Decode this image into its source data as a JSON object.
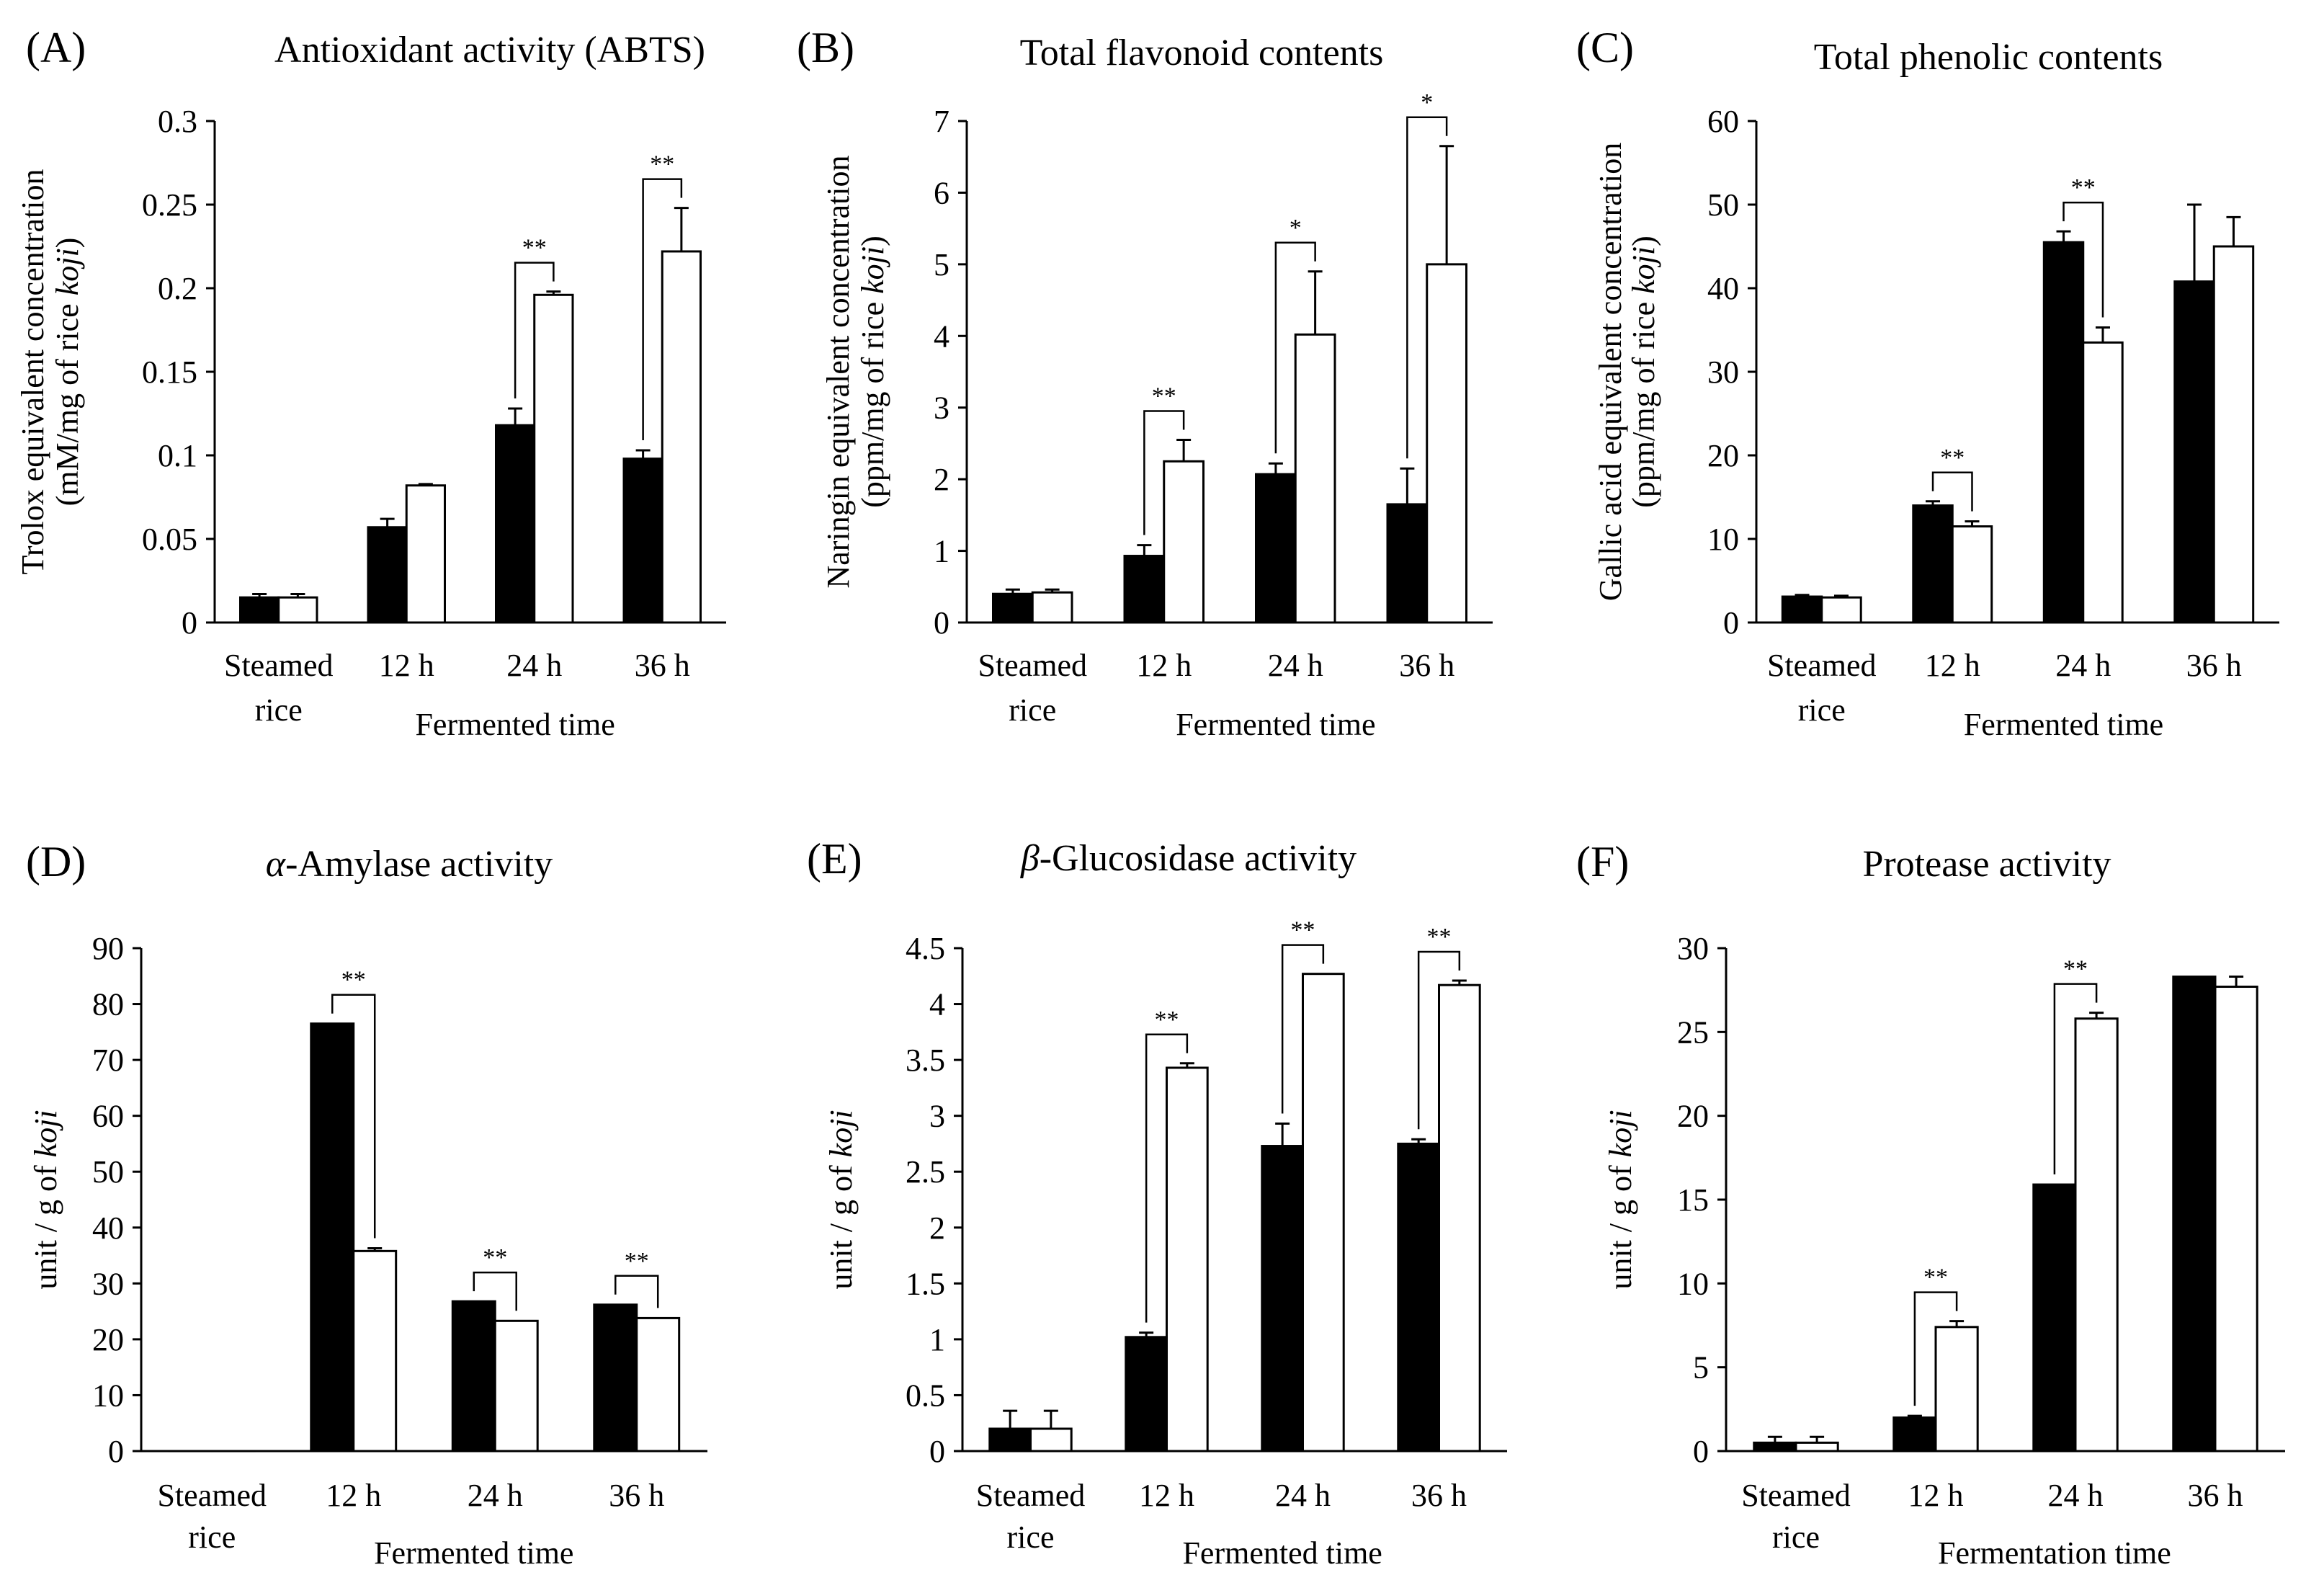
{
  "figure": {
    "legend_note": "",
    "colors": {
      "series_a": "#000000",
      "series_b": "#ffffff",
      "axis": "#000000"
    }
  },
  "chart_data": [
    {
      "panel": "(A)",
      "type": "bar",
      "title": "Antioxidant activity (ABTS)",
      "ylabel_line1": "Trolox equivalent concentration",
      "ylabel_line2_prefix": "(mM/mg of rice ",
      "ylabel_line2_italic": "koji",
      "ylabel_line2_suffix": ")",
      "xlabel": "Fermented time",
      "yticks": [
        "0",
        "0.05",
        "0.1",
        "0.15",
        "0.2",
        "0.25",
        "0.3"
      ],
      "ylim": [
        0,
        0.3
      ],
      "categories": [
        [
          "Steamed",
          "rice"
        ],
        [
          "12 h"
        ],
        [
          "24 h"
        ],
        [
          "36 h"
        ]
      ],
      "series": [
        {
          "name": "filled",
          "values": [
            0.015,
            0.057,
            0.118,
            0.098
          ],
          "errors": [
            0.002,
            0.005,
            0.01,
            0.005
          ]
        },
        {
          "name": "open",
          "values": [
            0.015,
            0.082,
            0.196,
            0.222
          ],
          "errors": [
            0.002,
            0.0008,
            0.002,
            0.026
          ]
        }
      ],
      "significance": [
        null,
        null,
        "**",
        "**"
      ]
    },
    {
      "panel": "(B)",
      "type": "bar",
      "title": "Total flavonoid contents",
      "ylabel_line1": "Naringin equivalent concentration",
      "ylabel_line2_prefix": "(ppm/mg of rice ",
      "ylabel_line2_italic": "koji",
      "ylabel_line2_suffix": ")",
      "xlabel": "Fermented time",
      "yticks": [
        "0",
        "1",
        "2",
        "3",
        "4",
        "5",
        "6",
        "7"
      ],
      "ylim": [
        0,
        7
      ],
      "categories": [
        [
          "Steamed",
          "rice"
        ],
        [
          "12 h"
        ],
        [
          "24 h"
        ],
        [
          "36 h"
        ]
      ],
      "series": [
        {
          "name": "filled",
          "values": [
            0.4,
            0.93,
            2.07,
            1.65
          ],
          "errors": [
            0.06,
            0.15,
            0.15,
            0.5
          ]
        },
        {
          "name": "open",
          "values": [
            0.42,
            2.25,
            4.02,
            5.0
          ],
          "errors": [
            0.04,
            0.3,
            0.88,
            1.65
          ]
        }
      ],
      "significance": [
        null,
        "**",
        "*",
        "*"
      ]
    },
    {
      "panel": "(C)",
      "type": "bar",
      "title": "Total phenolic contents",
      "ylabel_line1": "Gallic acid equivalent concentration",
      "ylabel_line2_prefix": "(ppm/mg of rice ",
      "ylabel_line2_italic": "koji",
      "ylabel_line2_suffix": ")",
      "xlabel": "Fermented time",
      "yticks": [
        "0",
        "10",
        "20",
        "30",
        "40",
        "50",
        "60"
      ],
      "ylim": [
        0,
        60
      ],
      "categories": [
        [
          "Steamed",
          "rice"
        ],
        [
          "12 h"
        ],
        [
          "24 h"
        ],
        [
          "36 h"
        ]
      ],
      "series": [
        {
          "name": "filled",
          "values": [
            3.1,
            14.0,
            45.5,
            40.8
          ],
          "errors": [
            0.2,
            0.5,
            1.3,
            9.2
          ]
        },
        {
          "name": "open",
          "values": [
            3.0,
            11.5,
            33.5,
            45.0
          ],
          "errors": [
            0.2,
            0.6,
            1.8,
            3.5
          ]
        }
      ],
      "significance": [
        null,
        "**",
        "**",
        null
      ]
    },
    {
      "panel": "(D)",
      "type": "bar",
      "title_italic": "α",
      "title": "-Amylase activity",
      "ylabel_line1": "",
      "ylabel_line2_prefix": "unit / g of ",
      "ylabel_line2_italic": "koji",
      "ylabel_line2_suffix": "",
      "xlabel": "Fermented time",
      "yticks": [
        "0",
        "10",
        "20",
        "30",
        "40",
        "50",
        "60",
        "70",
        "80",
        "90"
      ],
      "ylim": [
        0,
        90
      ],
      "categories": [
        [
          "Steamed",
          "rice"
        ],
        [
          "12 h"
        ],
        [
          "24 h"
        ],
        [
          "36 h"
        ]
      ],
      "series": [
        {
          "name": "filled",
          "values": [
            0,
            76.5,
            26.8,
            26.2
          ],
          "errors": [
            0,
            0,
            0,
            0
          ]
        },
        {
          "name": "open",
          "values": [
            0,
            35.8,
            23.3,
            23.8
          ],
          "errors": [
            0,
            0.5,
            0,
            0
          ]
        }
      ],
      "significance": [
        null,
        "**",
        "**",
        "**"
      ]
    },
    {
      "panel": "(E)",
      "type": "bar",
      "title_italic": "β",
      "title": "-Glucosidase activity",
      "ylabel_line1": "",
      "ylabel_line2_prefix": "unit / g of ",
      "ylabel_line2_italic": "koji",
      "ylabel_line2_suffix": "",
      "xlabel": "Fermented time",
      "yticks": [
        "0",
        "0.5",
        "1",
        "1.5",
        "2",
        "2.5",
        "3",
        "3.5",
        "4",
        "4.5"
      ],
      "ylim": [
        0,
        4.5
      ],
      "categories": [
        [
          "Steamed",
          "rice"
        ],
        [
          "12 h"
        ],
        [
          "24 h"
        ],
        [
          "36 h"
        ]
      ],
      "series": [
        {
          "name": "filled",
          "values": [
            0.2,
            1.02,
            2.73,
            2.75
          ],
          "errors": [
            0.16,
            0.04,
            0.2,
            0.04
          ]
        },
        {
          "name": "open",
          "values": [
            0.2,
            3.43,
            4.27,
            4.17
          ],
          "errors": [
            0.16,
            0.04,
            0,
            0.04
          ]
        }
      ],
      "significance": [
        null,
        "**",
        "**",
        "**"
      ]
    },
    {
      "panel": "(F)",
      "type": "bar",
      "title": "Protease activity",
      "ylabel_line1": "",
      "ylabel_line2_prefix": "unit / g of ",
      "ylabel_line2_italic": "koji",
      "ylabel_line2_suffix": "",
      "xlabel": "Fermentation time",
      "yticks": [
        "0",
        "5",
        "10",
        "15",
        "20",
        "25",
        "30"
      ],
      "ylim": [
        0,
        30
      ],
      "categories": [
        [
          "Steamed",
          "rice"
        ],
        [
          "12 h"
        ],
        [
          "24 h"
        ],
        [
          "36 h"
        ]
      ],
      "series": [
        {
          "name": "filled",
          "values": [
            0.5,
            2.0,
            15.9,
            28.3
          ],
          "errors": [
            0.35,
            0.1,
            0,
            0
          ]
        },
        {
          "name": "open",
          "values": [
            0.5,
            7.4,
            25.8,
            27.7
          ],
          "errors": [
            0.35,
            0.35,
            0.35,
            0.6
          ]
        }
      ],
      "significance": [
        null,
        "**",
        "**",
        null
      ]
    }
  ]
}
